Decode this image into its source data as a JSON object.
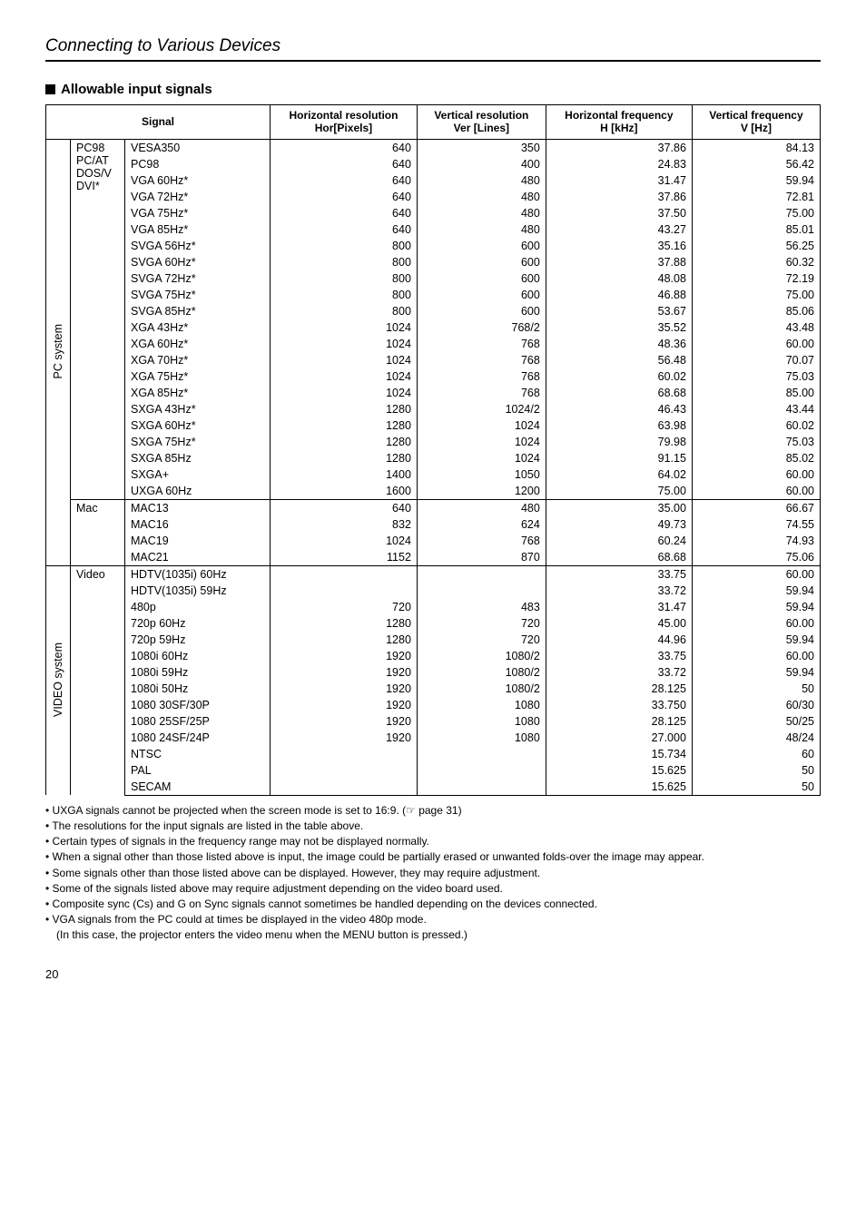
{
  "page": {
    "title": "Connecting to Various Devices",
    "section": "Allowable input signals",
    "page_number": "20"
  },
  "table": {
    "headers": {
      "signal": "Signal",
      "hres": "Horizontal resolution\nHor[Pixels]",
      "vres": "Vertical resolution\nVer [Lines]",
      "hfreq": "Horizontal frequency\nH [kHz]",
      "vfreq": "Vertical frequency\nV [Hz]"
    },
    "groups": [
      {
        "system": "PC system",
        "categories": [
          {
            "label_lines": [
              "PC98",
              "PC/AT",
              "DOS/V",
              "DVI*"
            ],
            "rows": [
              {
                "name": "VESA350",
                "hr": "640",
                "vr": "350",
                "hf": "37.86",
                "vf": "84.13"
              },
              {
                "name": "PC98",
                "hr": "640",
                "vr": "400",
                "hf": "24.83",
                "vf": "56.42"
              },
              {
                "name": "VGA 60Hz*",
                "hr": "640",
                "vr": "480",
                "hf": "31.47",
                "vf": "59.94"
              },
              {
                "name": "VGA 72Hz*",
                "hr": "640",
                "vr": "480",
                "hf": "37.86",
                "vf": "72.81"
              },
              {
                "name": "VGA 75Hz*",
                "hr": "640",
                "vr": "480",
                "hf": "37.50",
                "vf": "75.00"
              },
              {
                "name": "VGA 85Hz*",
                "hr": "640",
                "vr": "480",
                "hf": "43.27",
                "vf": "85.01"
              },
              {
                "name": "SVGA 56Hz*",
                "hr": "800",
                "vr": "600",
                "hf": "35.16",
                "vf": "56.25"
              },
              {
                "name": "SVGA 60Hz*",
                "hr": "800",
                "vr": "600",
                "hf": "37.88",
                "vf": "60.32"
              },
              {
                "name": "SVGA 72Hz*",
                "hr": "800",
                "vr": "600",
                "hf": "48.08",
                "vf": "72.19"
              },
              {
                "name": "SVGA 75Hz*",
                "hr": "800",
                "vr": "600",
                "hf": "46.88",
                "vf": "75.00"
              },
              {
                "name": "SVGA 85Hz*",
                "hr": "800",
                "vr": "600",
                "hf": "53.67",
                "vf": "85.06"
              },
              {
                "name": "XGA 43Hz*",
                "hr": "1024",
                "vr": "768/2",
                "hf": "35.52",
                "vf": "43.48"
              },
              {
                "name": "XGA 60Hz*",
                "hr": "1024",
                "vr": "768",
                "hf": "48.36",
                "vf": "60.00"
              },
              {
                "name": "XGA 70Hz*",
                "hr": "1024",
                "vr": "768",
                "hf": "56.48",
                "vf": "70.07"
              },
              {
                "name": "XGA 75Hz*",
                "hr": "1024",
                "vr": "768",
                "hf": "60.02",
                "vf": "75.03"
              },
              {
                "name": "XGA 85Hz*",
                "hr": "1024",
                "vr": "768",
                "hf": "68.68",
                "vf": "85.00"
              },
              {
                "name": "SXGA 43Hz*",
                "hr": "1280",
                "vr": "1024/2",
                "hf": "46.43",
                "vf": "43.44"
              },
              {
                "name": "SXGA 60Hz*",
                "hr": "1280",
                "vr": "1024",
                "hf": "63.98",
                "vf": "60.02"
              },
              {
                "name": "SXGA 75Hz*",
                "hr": "1280",
                "vr": "1024",
                "hf": "79.98",
                "vf": "75.03"
              },
              {
                "name": "SXGA 85Hz",
                "hr": "1280",
                "vr": "1024",
                "hf": "91.15",
                "vf": "85.02"
              },
              {
                "name": "SXGA+",
                "hr": "1400",
                "vr": "1050",
                "hf": "64.02",
                "vf": "60.00"
              },
              {
                "name": "UXGA 60Hz",
                "hr": "1600",
                "vr": "1200",
                "hf": "75.00",
                "vf": "60.00"
              }
            ]
          },
          {
            "label_lines": [
              "Mac"
            ],
            "rows": [
              {
                "name": "MAC13",
                "hr": "640",
                "vr": "480",
                "hf": "35.00",
                "vf": "66.67"
              },
              {
                "name": "MAC16",
                "hr": "832",
                "vr": "624",
                "hf": "49.73",
                "vf": "74.55"
              },
              {
                "name": "MAC19",
                "hr": "1024",
                "vr": "768",
                "hf": "60.24",
                "vf": "74.93"
              },
              {
                "name": "MAC21",
                "hr": "1152",
                "vr": "870",
                "hf": "68.68",
                "vf": "75.06"
              }
            ]
          }
        ]
      },
      {
        "system": "VIDEO system",
        "categories": [
          {
            "label_lines": [
              "Video"
            ],
            "rows": [
              {
                "name": "HDTV(1035i) 60Hz",
                "hr": "",
                "vr": "",
                "hf": "33.75",
                "vf": "60.00"
              },
              {
                "name": "HDTV(1035i) 59Hz",
                "hr": "",
                "vr": "",
                "hf": "33.72",
                "vf": "59.94"
              },
              {
                "name": "480p",
                "hr": "720",
                "vr": "483",
                "hf": "31.47",
                "vf": "59.94"
              },
              {
                "name": "720p 60Hz",
                "hr": "1280",
                "vr": "720",
                "hf": "45.00",
                "vf": "60.00"
              },
              {
                "name": "720p 59Hz",
                "hr": "1280",
                "vr": "720",
                "hf": "44.96",
                "vf": "59.94"
              },
              {
                "name": "1080i 60Hz",
                "hr": "1920",
                "vr": "1080/2",
                "hf": "33.75",
                "vf": "60.00"
              },
              {
                "name": "1080i 59Hz",
                "hr": "1920",
                "vr": "1080/2",
                "hf": "33.72",
                "vf": "59.94"
              },
              {
                "name": "1080i 50Hz",
                "hr": "1920",
                "vr": "1080/2",
                "hf": "28.125",
                "vf": "50"
              },
              {
                "name": "1080 30SF/30P",
                "hr": "1920",
                "vr": "1080",
                "hf": "33.750",
                "vf": "60/30"
              },
              {
                "name": "1080 25SF/25P",
                "hr": "1920",
                "vr": "1080",
                "hf": "28.125",
                "vf": "50/25"
              },
              {
                "name": "1080 24SF/24P",
                "hr": "1920",
                "vr": "1080",
                "hf": "27.000",
                "vf": "48/24"
              },
              {
                "name": "NTSC",
                "hr": "",
                "vr": "",
                "hf": "15.734",
                "vf": "60"
              },
              {
                "name": "PAL",
                "hr": "",
                "vr": "",
                "hf": "15.625",
                "vf": "50"
              },
              {
                "name": "SECAM",
                "hr": "",
                "vr": "",
                "hf": "15.625",
                "vf": "50"
              }
            ]
          }
        ]
      }
    ]
  },
  "notes": [
    "UXGA signals cannot be projected when the screen mode is set to 16:9. (☞ page 31)",
    "The resolutions for the input signals are listed in the table above.",
    "Certain types of signals in the frequency range  may not be displayed normally.",
    "When a signal other than those listed above is input, the image could be partially erased or unwanted folds-over the image may appear.",
    "Some signals other than those listed above can be displayed. However, they may require adjustment.",
    "Some of the signals listed above may require adjustment depending on the video board used.",
    "Composite sync (Cs) and G on Sync signals cannot sometimes be handled depending on the devices connected.",
    "VGA signals from the PC could at times be displayed in the video 480p mode."
  ],
  "sub_note": "(In this case, the projector enters the video menu when the MENU button is pressed.)"
}
